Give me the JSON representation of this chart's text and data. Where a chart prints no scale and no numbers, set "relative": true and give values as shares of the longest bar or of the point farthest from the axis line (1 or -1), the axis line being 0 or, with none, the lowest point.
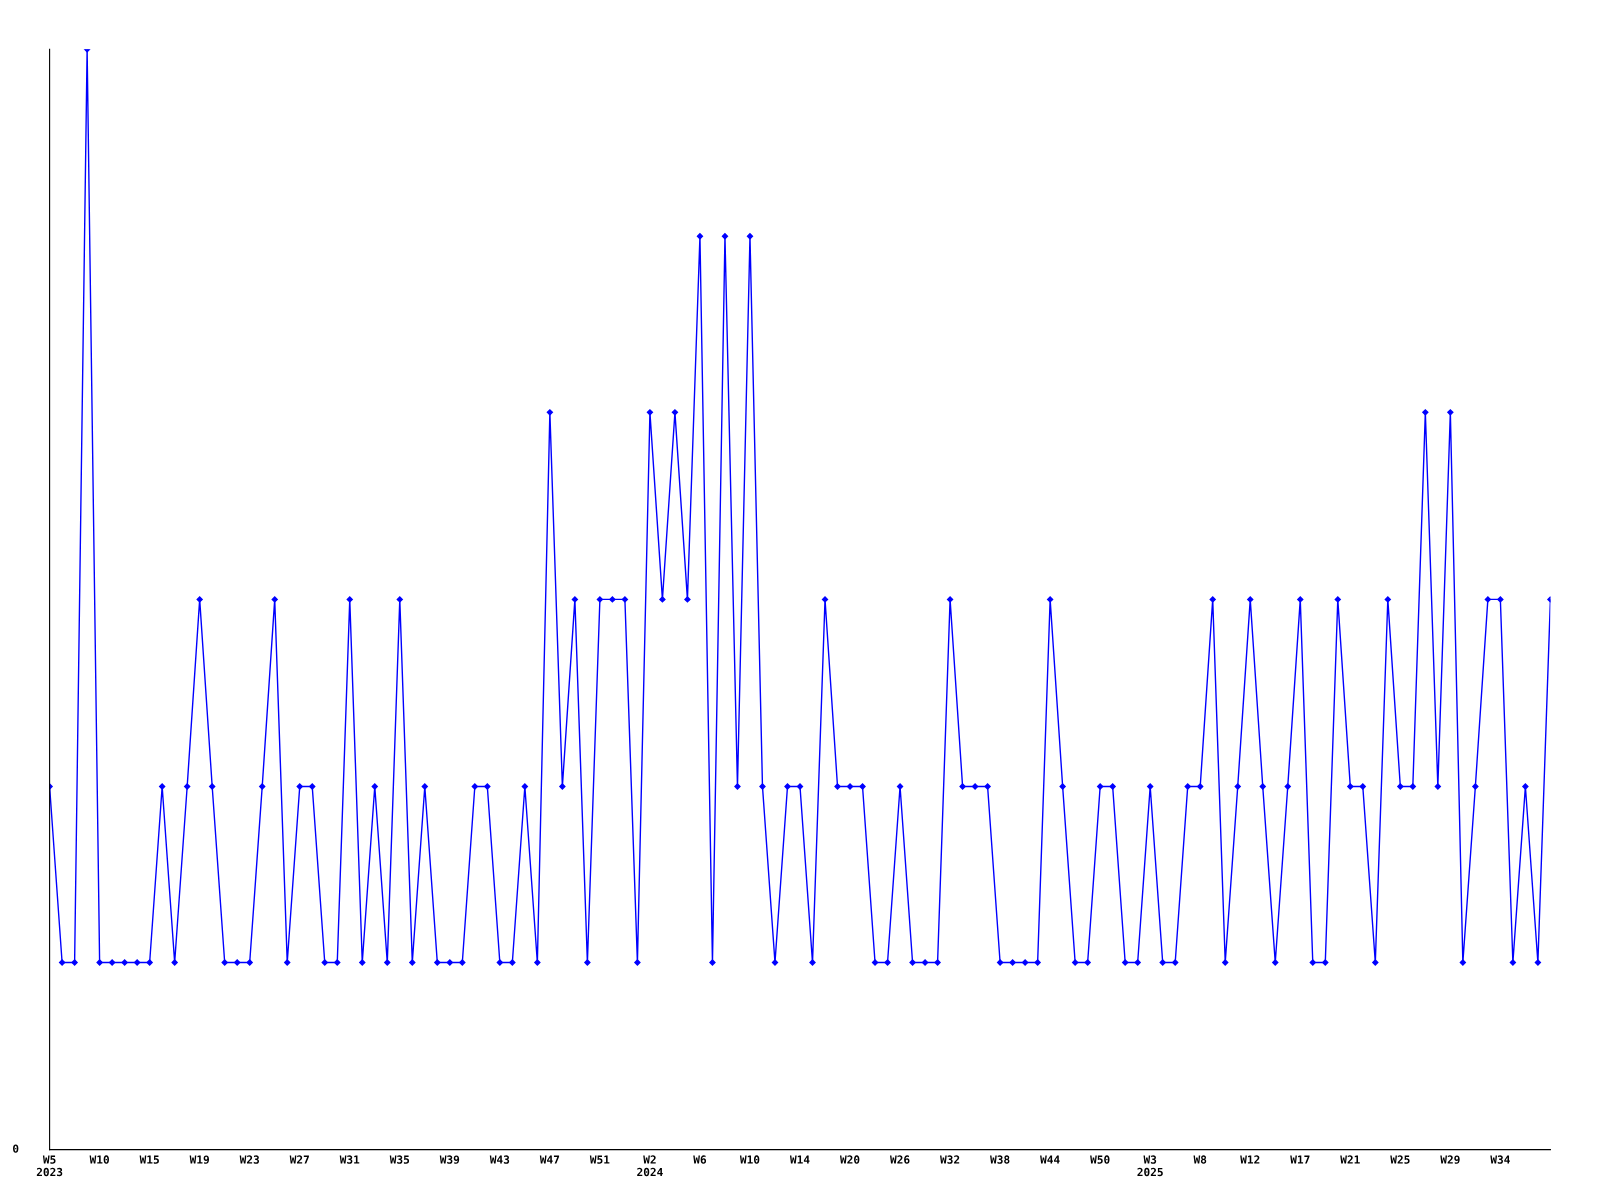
{
  "chart_data": {
    "type": "line",
    "relative": true,
    "categories": [
      "W5\n2023",
      null,
      null,
      null,
      "W10",
      null,
      null,
      null,
      "W15",
      null,
      null,
      null,
      "W19",
      null,
      null,
      null,
      "W23",
      null,
      null,
      null,
      "W27",
      null,
      null,
      null,
      "W31",
      null,
      null,
      null,
      "W35",
      null,
      null,
      null,
      "W39",
      null,
      null,
      null,
      "W43",
      null,
      null,
      null,
      "W47",
      null,
      null,
      null,
      "W51",
      null,
      null,
      null,
      "W2\n2024",
      null,
      null,
      null,
      "W6",
      null,
      null,
      null,
      "W10",
      null,
      null,
      null,
      "W14",
      null,
      null,
      null,
      "W20",
      null,
      null,
      null,
      "W26",
      null,
      null,
      null,
      "W32",
      null,
      null,
      null,
      "W38",
      null,
      null,
      null,
      "W44",
      null,
      null,
      null,
      "W50",
      null,
      null,
      null,
      "W3\n2025",
      null,
      null,
      null,
      "W8",
      null,
      null,
      null,
      "W12",
      null,
      null,
      null,
      "W17",
      null,
      null,
      null,
      "W21",
      null,
      null,
      null,
      "W25",
      null,
      null,
      null,
      "W29",
      null,
      null,
      null,
      "W34",
      null,
      null,
      null,
      null
    ],
    "series": [
      {
        "color": "#0000ff",
        "values": [
          0.33,
          0.17,
          0.17,
          1,
          0.17,
          0.17,
          0.17,
          0.17,
          0.17,
          0.33,
          0.17,
          0.33,
          0.5,
          0.33,
          0.17,
          0.17,
          0.17,
          0.33,
          0.5,
          0.17,
          0.33,
          0.33,
          0.17,
          0.17,
          0.5,
          0.17,
          0.33,
          0.17,
          0.5,
          0.17,
          0.33,
          0.17,
          0.17,
          0.17,
          0.33,
          0.33,
          0.17,
          0.17,
          0.33,
          0.17,
          0.67,
          0.33,
          0.5,
          0.17,
          0.5,
          0.5,
          0.5,
          0.17,
          0.67,
          0.5,
          0.67,
          0.5,
          0.83,
          0.17,
          0.83,
          0.33,
          0.83,
          0.33,
          0.17,
          0.33,
          0.33,
          0.17,
          0.5,
          0.33,
          0.33,
          0.33,
          0.17,
          0.17,
          0.33,
          0.17,
          0.17,
          0.17,
          0.5,
          0.33,
          0.33,
          0.33,
          0.17,
          0.17,
          0.17,
          0.17,
          0.5,
          0.33,
          0.17,
          0.17,
          0.33,
          0.33,
          0.17,
          0.17,
          0.33,
          0.17,
          0.17,
          0.33,
          0.33,
          0.5,
          0.17,
          0.33,
          0.5,
          0.33,
          0.17,
          0.33,
          0.5,
          0.17,
          0.17,
          0.5,
          0.33,
          0.33,
          0.17,
          0.5,
          0.33,
          0.33,
          0.67,
          0.33,
          0.67,
          0.17,
          0.33,
          0.5,
          0.5,
          0.17,
          0.33,
          0.17,
          0.5
        ]
      }
    ],
    "marker": "diamond",
    "grid": false,
    "legend": false,
    "annotations": [
      "0"
    ]
  }
}
